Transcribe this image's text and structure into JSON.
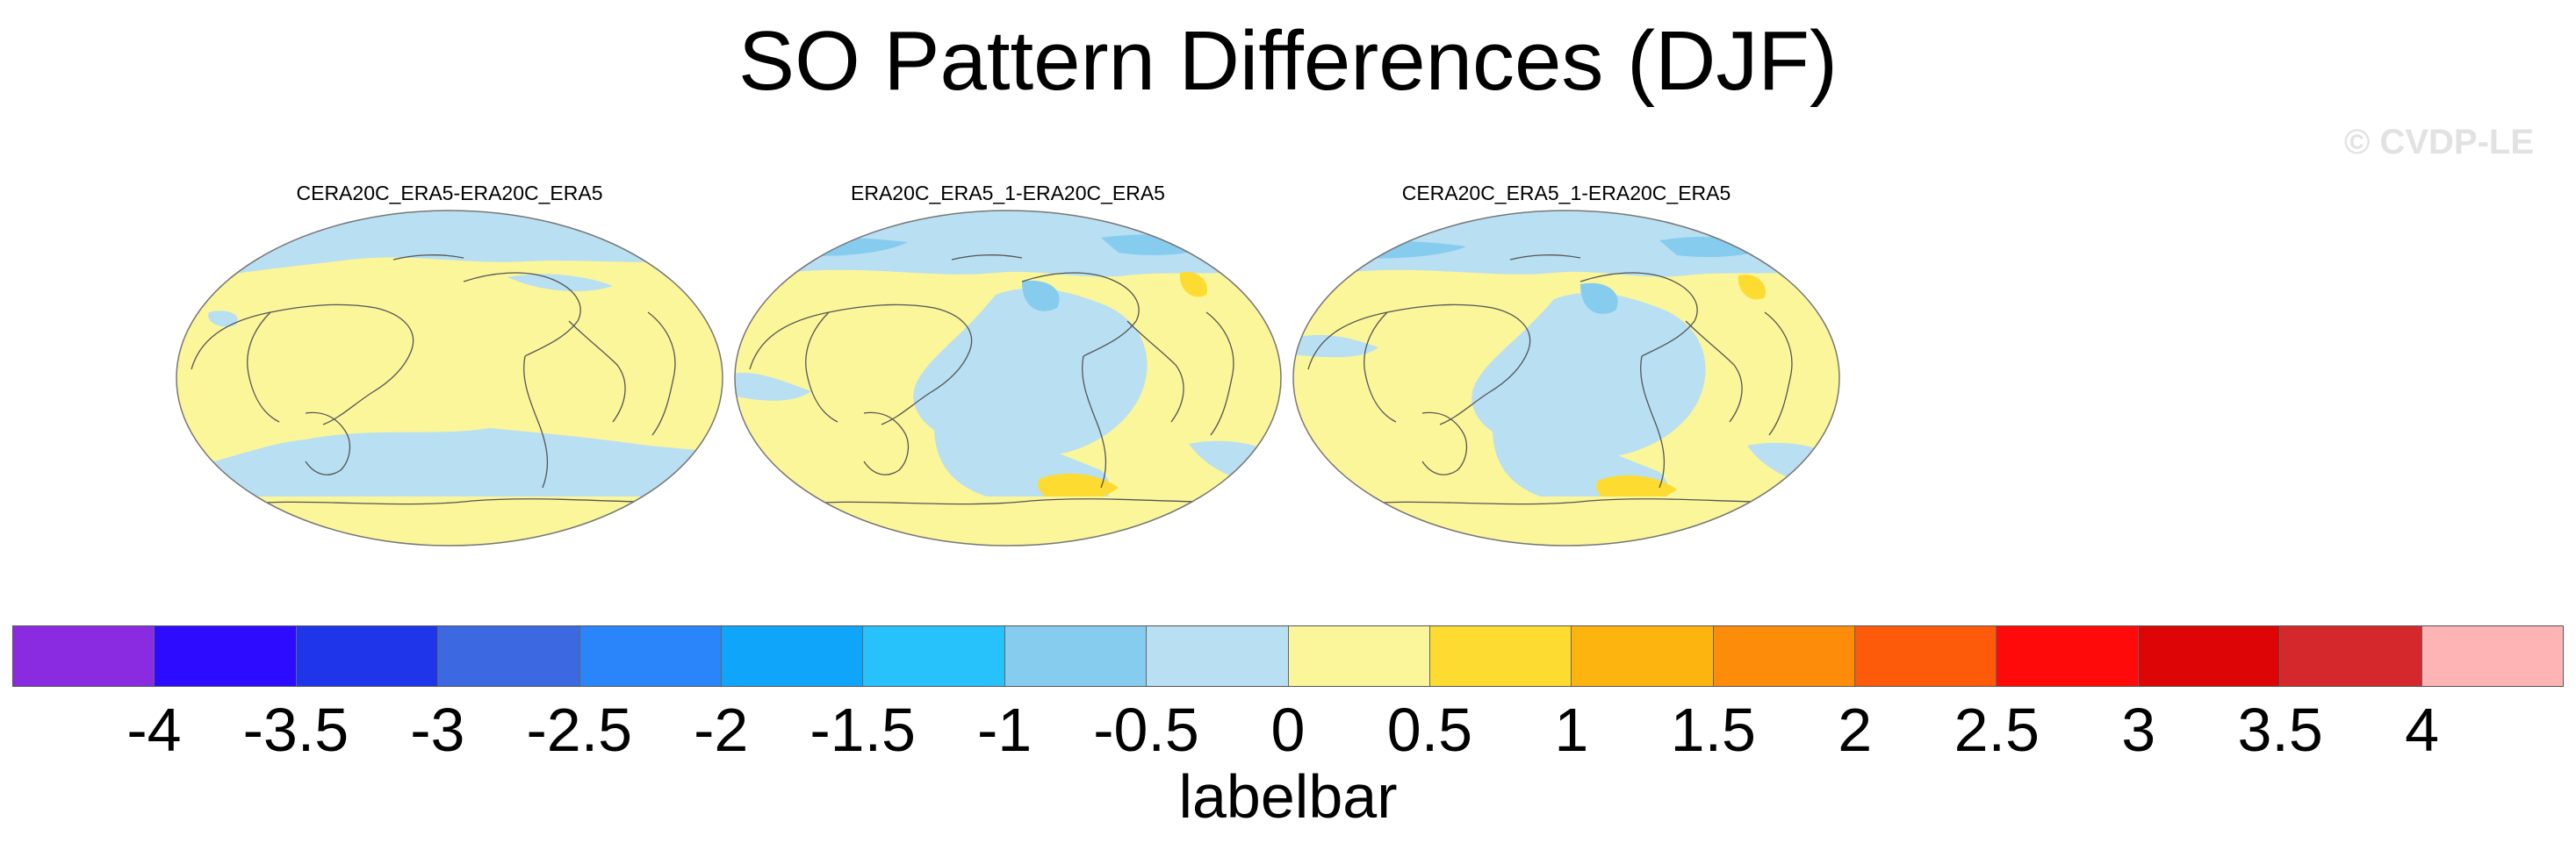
{
  "title": "SO Pattern Differences (DJF)",
  "watermark": "© CVDP-LE",
  "panels": [
    {
      "title": "CERA20C_ERA5-ERA20C_ERA5"
    },
    {
      "title": "ERA20C_ERA5_1-ERA20C_ERA5"
    },
    {
      "title": "CERA20C_ERA5_1-ERA20C_ERA5"
    }
  ],
  "colorbar": {
    "colors": [
      "#8a2be2",
      "#2c0bff",
      "#1f35ea",
      "#3c69e1",
      "#2a85fb",
      "#0ea5fb",
      "#27c1fb",
      "#86ccef",
      "#b8dff2",
      "#fbf69a",
      "#fddb31",
      "#fdb40f",
      "#fd8c0a",
      "#fd5a0a",
      "#fe0a0a",
      "#dd0505",
      "#d4282d",
      "#feb4b4"
    ],
    "tick_labels": [
      "-4",
      "-3.5",
      "-3",
      "-2.5",
      "-2",
      "-1.5",
      "-1",
      "-0.5",
      "0",
      "0.5",
      "1",
      "1.5",
      "2",
      "2.5",
      "3",
      "3.5",
      "4"
    ],
    "title": "labelbar"
  },
  "map_colors": {
    "positive_weak": "#fbf69a",
    "negative_weak": "#b8dff2",
    "negative_mid": "#86ccef",
    "positive_mid": "#fddb31",
    "coastline": "#555555",
    "outline": "#777777"
  }
}
